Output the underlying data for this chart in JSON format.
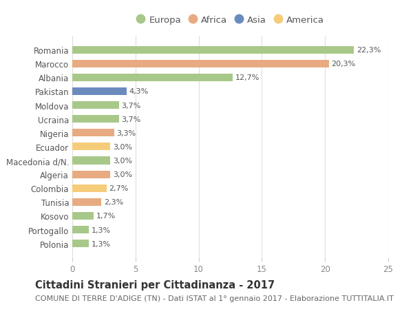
{
  "categories": [
    "Romania",
    "Marocco",
    "Albania",
    "Pakistan",
    "Moldova",
    "Ucraina",
    "Nigeria",
    "Ecuador",
    "Macedonia d/N.",
    "Algeria",
    "Colombia",
    "Tunisia",
    "Kosovo",
    "Portogallo",
    "Polonia"
  ],
  "values": [
    22.3,
    20.3,
    12.7,
    4.3,
    3.7,
    3.7,
    3.3,
    3.0,
    3.0,
    3.0,
    2.7,
    2.3,
    1.7,
    1.3,
    1.3
  ],
  "continents": [
    "Europa",
    "Africa",
    "Europa",
    "Asia",
    "Europa",
    "Europa",
    "Africa",
    "America",
    "Europa",
    "Africa",
    "America",
    "Africa",
    "Europa",
    "Europa",
    "Europa"
  ],
  "labels": [
    "22,3%",
    "20,3%",
    "12,7%",
    "4,3%",
    "3,7%",
    "3,7%",
    "3,3%",
    "3,0%",
    "3,0%",
    "3,0%",
    "2,7%",
    "2,3%",
    "1,7%",
    "1,3%",
    "1,3%"
  ],
  "colors": {
    "Europa": "#a8c88a",
    "Africa": "#e8aa80",
    "Asia": "#6b8bbf",
    "America": "#f5cc7a"
  },
  "legend_order": [
    "Europa",
    "Africa",
    "Asia",
    "America"
  ],
  "title": "Cittadini Stranieri per Cittadinanza - 2017",
  "subtitle": "COMUNE DI TERRE D'ADIGE (TN) - Dati ISTAT al 1° gennaio 2017 - Elaborazione TUTTITALIA.IT",
  "xlim": [
    0,
    25
  ],
  "xticks": [
    0,
    5,
    10,
    15,
    20,
    25
  ],
  "background_color": "#ffffff",
  "grid_color": "#dddddd",
  "bar_height": 0.55,
  "title_fontsize": 10.5,
  "subtitle_fontsize": 8,
  "label_fontsize": 8,
  "tick_fontsize": 8.5,
  "legend_fontsize": 9.5
}
